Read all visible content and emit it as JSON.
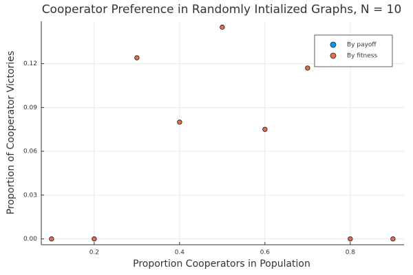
{
  "chart_data": {
    "type": "scatter",
    "title": "Cooperator Preference in Randomly Intialized Graphs, N = 10",
    "x_label": "Proportion Cooperators in Population",
    "y_label": "Proportion of Cooperator Victories",
    "x": [
      0.1,
      0.2,
      0.3,
      0.4,
      0.5,
      0.6,
      0.7,
      0.8,
      0.9
    ],
    "series": [
      {
        "name": "By payoff",
        "color": "#009af9",
        "values": [
          0,
          0,
          0.124,
          0.08,
          0.145,
          0.075,
          0.117,
          0,
          0
        ]
      },
      {
        "name": "By fitness",
        "color": "#e26f46",
        "values": [
          0,
          0,
          0.124,
          0.08,
          0.145,
          0.075,
          0.117,
          0,
          0
        ]
      }
    ],
    "xlim": [
      0.076,
      0.926
    ],
    "ylim": [
      -0.004,
      0.149
    ],
    "xticks": [
      0.2,
      0.4,
      0.6,
      0.8
    ],
    "yticks": [
      {
        "value": 0,
        "label": "0.00"
      },
      {
        "value": 0.03,
        "label": "0.03"
      },
      {
        "value": 0.06,
        "label": "0.06"
      },
      {
        "value": 0.09,
        "label": "0.09"
      },
      {
        "value": 0.12,
        "label": "0.12"
      }
    ],
    "grid": true,
    "legend": "top-right"
  }
}
